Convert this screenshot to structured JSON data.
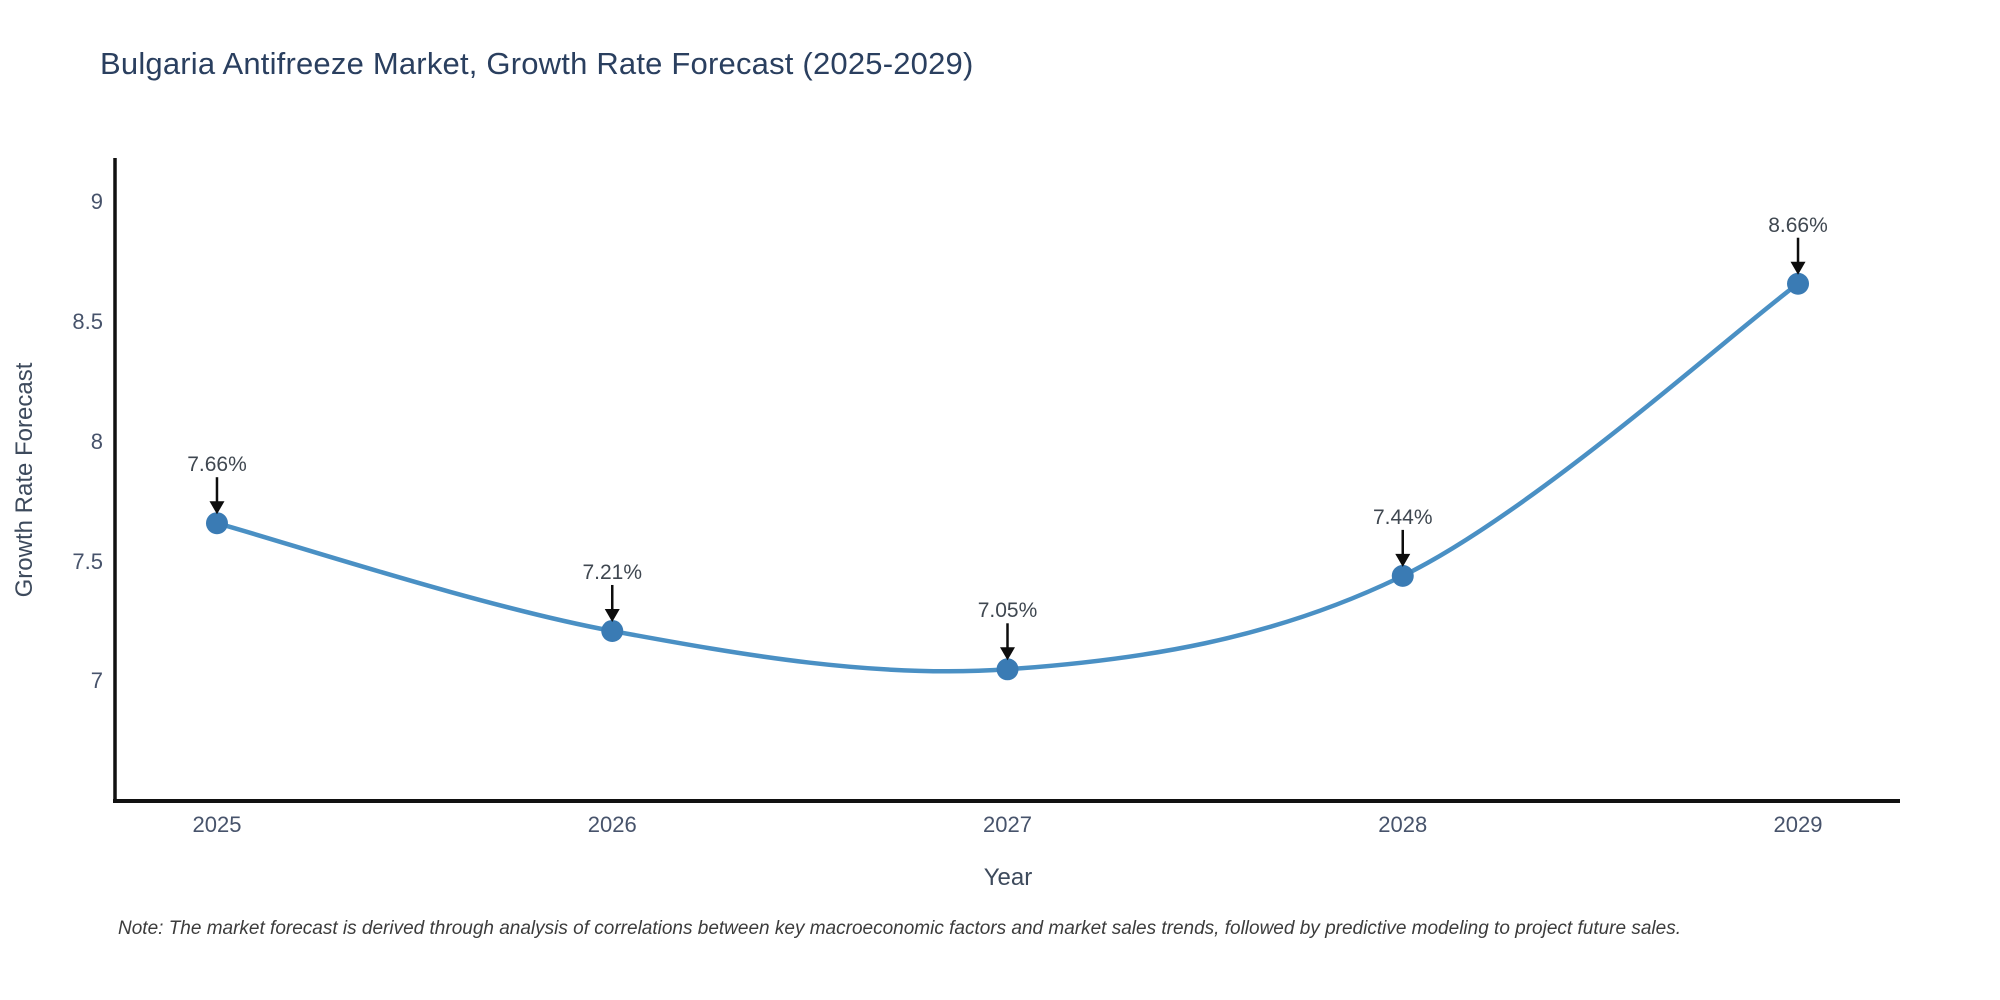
{
  "title": "Bulgaria Antifreeze Market, Growth Rate Forecast (2025-2029)",
  "note": "Note: The market forecast is derived through analysis of correlations between key macroeconomic factors and market sales trends, followed by predictive modeling to project future sales.",
  "axes": {
    "x_label": "Year",
    "y_label": "Growth Rate Forecast",
    "x_tick_labels": [
      "2025",
      "2026",
      "2027",
      "2028",
      "2029"
    ],
    "y_tick_labels": [
      "7",
      "7.5",
      "8",
      "8.5",
      "9"
    ]
  },
  "colors": {
    "title": "#2a3f5f",
    "tick": "#47536b",
    "axis_line": "#111111",
    "line": "#4a90c4",
    "marker": "#3a7bb4",
    "arrow": "#0d0d0d",
    "annotation_text": "#3f4750",
    "background": "#ffffff"
  },
  "chart_data": {
    "type": "line",
    "title": "Bulgaria Antifreeze Market, Growth Rate Forecast (2025-2029)",
    "xlabel": "Year",
    "ylabel": "Growth Rate Forecast",
    "x": [
      2025,
      2026,
      2027,
      2028,
      2029
    ],
    "values": [
      7.66,
      7.21,
      7.05,
      7.44,
      8.66
    ],
    "point_labels": [
      "7.66%",
      "7.21%",
      "7.05%",
      "7.44%",
      "8.66%"
    ],
    "x_ticks": [
      2025,
      2026,
      2027,
      2028,
      2029
    ],
    "y_ticks": [
      7,
      7.5,
      8,
      8.5,
      9
    ],
    "x_range": [
      2024.742,
      2029.258
    ],
    "y_range": [
      6.5,
      9.185
    ],
    "grid": false,
    "legend_position": "none",
    "line_shape": "spline",
    "marker_size": 22
  }
}
